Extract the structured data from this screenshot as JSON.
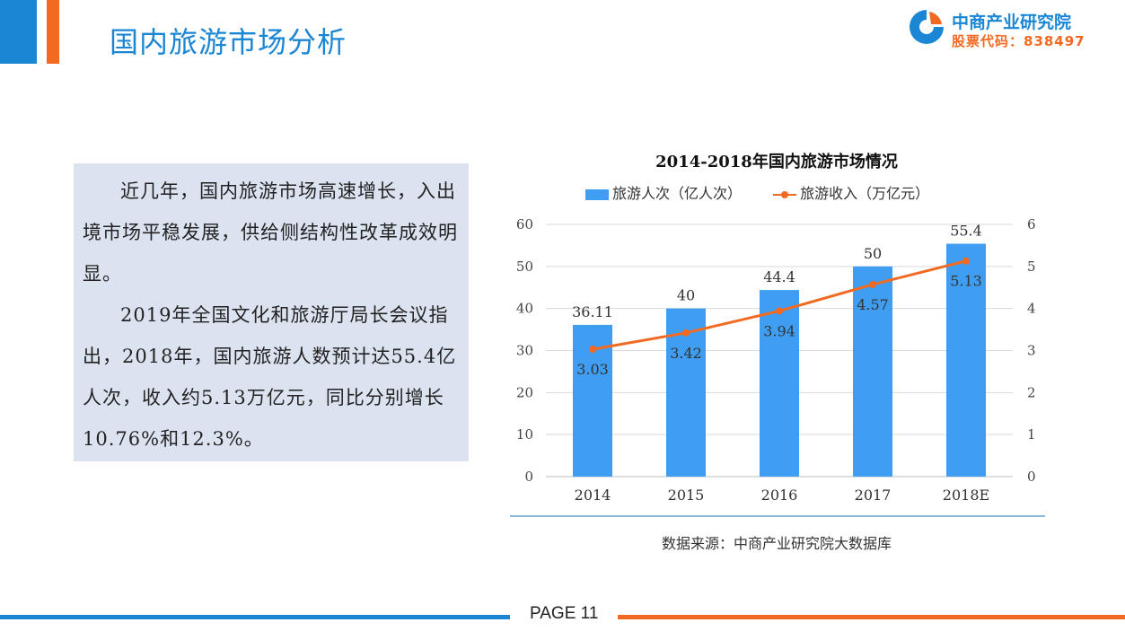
{
  "header": {
    "title": "国内旅游市场分析",
    "logo_name": "中商产业研究院",
    "logo_code": "股票代码：838497"
  },
  "text_panel": {
    "paragraphs": [
      "近几年，国内旅游市场高速增长，入出境市场平稳发展，供给侧结构性改革成效明显。",
      "2019年全国文化和旅游厅局长会议指出，2018年，国内旅游人数预计达55.4亿人次，收入约5.13万亿元，同比分别增长10.76%和12.3%。"
    ]
  },
  "chart_data": {
    "type": "bar",
    "title": "2014-2018年国内旅游市场情况",
    "categories": [
      "2014",
      "2015",
      "2016",
      "2017",
      "2018E"
    ],
    "series": [
      {
        "name": "旅游人次（亿人次）",
        "type": "bar",
        "axis": "left",
        "values": [
          36.11,
          40,
          44.4,
          50,
          55.4
        ],
        "labels": [
          "36.11",
          "40",
          "44.4",
          "50",
          "55.4"
        ]
      },
      {
        "name": "旅游收入（万亿元）",
        "type": "line",
        "axis": "right",
        "values": [
          3.03,
          3.42,
          3.94,
          4.57,
          5.13
        ],
        "labels": [
          "3.03",
          "3.42",
          "3.94",
          "4.57",
          "5.13"
        ]
      }
    ],
    "y_left": {
      "min": 0,
      "max": 60,
      "ticks": [
        "0",
        "10",
        "20",
        "30",
        "40",
        "50",
        "60"
      ]
    },
    "y_right": {
      "min": 0,
      "max": 6,
      "ticks": [
        "0",
        "1",
        "2",
        "3",
        "4",
        "5",
        "6"
      ]
    },
    "grid": true,
    "legend": "top",
    "colors": {
      "bar": "#3f9ef2",
      "line": "#f26a21"
    },
    "source": "数据来源：中商产业研究院大数据库"
  },
  "footer": {
    "page": "PAGE 11"
  }
}
